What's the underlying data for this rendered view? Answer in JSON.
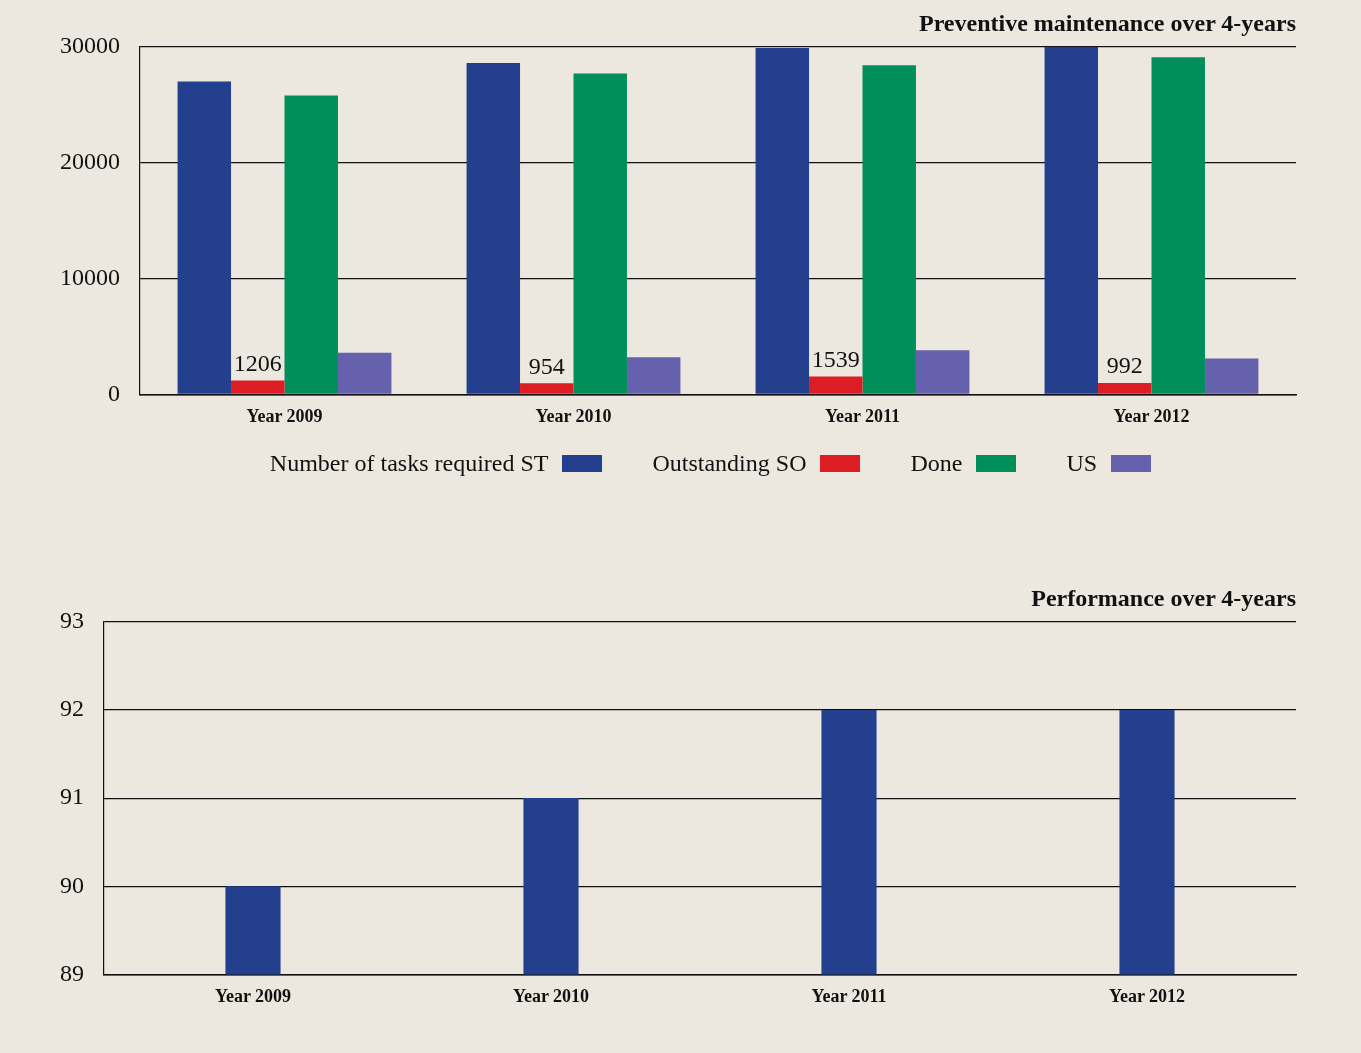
{
  "chart_data": [
    {
      "type": "bar",
      "title": "Preventive maintenance over 4-years",
      "categories": [
        "Year 2009",
        "Year 2010",
        "Year 2011",
        "Year 2012"
      ],
      "series": [
        {
          "name": "Number of tasks required ST",
          "color": "#243f8e",
          "values": [
            27000,
            28600,
            29900,
            30000
          ]
        },
        {
          "name": "Outstanding SO",
          "color": "#dc1d24",
          "values": [
            1206,
            954,
            1539,
            992
          ],
          "value_labels": [
            "1206",
            "954",
            "1539",
            "992"
          ]
        },
        {
          "name": "Done",
          "color": "#008f5b",
          "values": [
            25800,
            27700,
            28400,
            29100
          ]
        },
        {
          "name": "US",
          "color": "#6661ad",
          "values": [
            3600,
            3200,
            3800,
            3100
          ]
        }
      ],
      "ylim": [
        0,
        30000
      ],
      "yticks": [
        0,
        10000,
        20000,
        30000
      ],
      "grid": "y",
      "legend": "bottom"
    },
    {
      "type": "bar",
      "title": "Performance over 4-years",
      "categories": [
        "Year 2009",
        "Year 2010",
        "Year 2011",
        "Year 2012"
      ],
      "series": [
        {
          "color": "#243f8e",
          "values": [
            90,
            91,
            92,
            92
          ]
        }
      ],
      "ylim": [
        89,
        93
      ],
      "yticks": [
        89,
        90,
        91,
        92,
        93
      ],
      "grid": "y"
    }
  ]
}
